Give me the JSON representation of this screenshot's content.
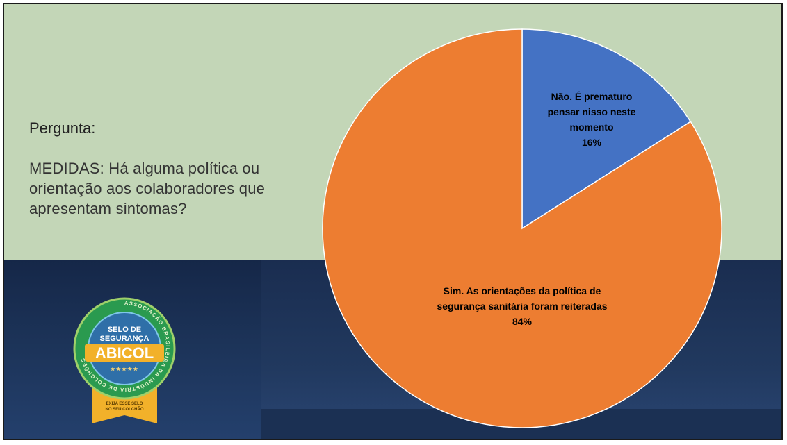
{
  "question": {
    "label": "Pergunta:",
    "text": "MEDIDAS: Há alguma política ou orientação aos colaboradores que apresentam sintomas?"
  },
  "seal": {
    "ring_text": "ASSOCIAÇÃO BRASILEIRA DA INDÚSTRIA DE COLCHÕES",
    "line1": "SELO DE",
    "line2": "SEGURANÇA",
    "brand": "ABICOL",
    "stars": "★★★★★",
    "ribbon1": "EXIJA ESSE SELO",
    "ribbon2": "NO SEU COLCHÃO"
  },
  "chart_data": {
    "type": "pie",
    "slices": [
      {
        "label_lines": [
          "Não. É prematuro",
          "pensar nisso neste",
          "momento"
        ],
        "value": 16,
        "value_text": "16%",
        "color": "#4472c4"
      },
      {
        "label_lines": [
          "Sim. As orientações da política de",
          "segurança sanitária foram reiteradas"
        ],
        "value": 84,
        "value_text": "84%",
        "color": "#ed7d31"
      }
    ]
  }
}
